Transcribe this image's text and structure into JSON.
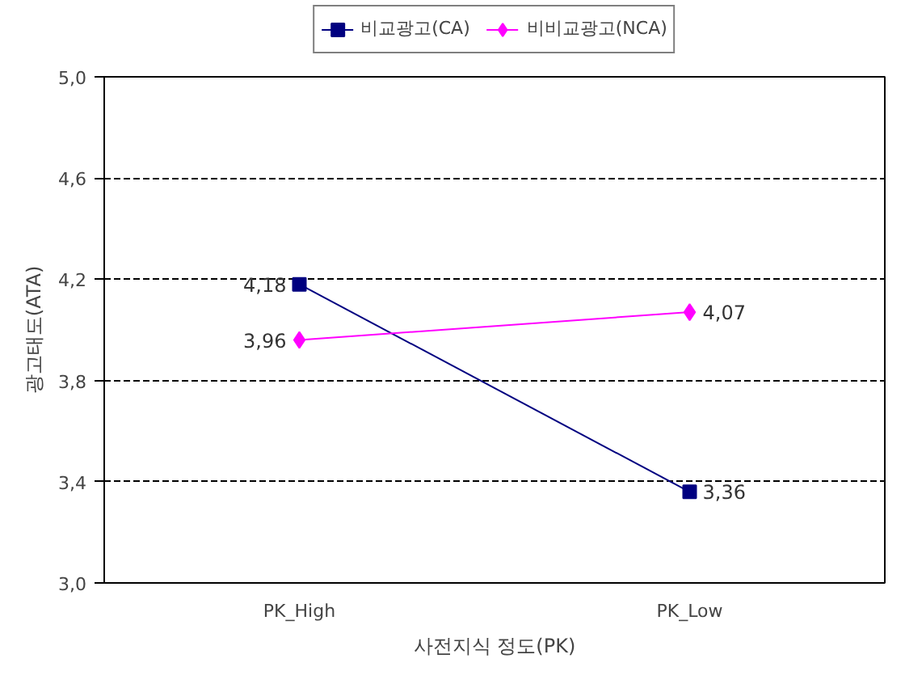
{
  "chart_data": {
    "type": "line",
    "xlabel": "사전지식 정도(PK)",
    "ylabel": "광고태도(ATA)",
    "categories": [
      "PK_High",
      "PK_Low"
    ],
    "series": [
      {
        "name": "비교광고(CA)",
        "color": "#000080",
        "marker": "square",
        "values": [
          4.18,
          3.36
        ],
        "value_labels": [
          "4,18",
          "3,36"
        ]
      },
      {
        "name": "비비교광고(NCA)",
        "color": "#ff00ff",
        "marker": "diamond",
        "values": [
          3.96,
          4.07
        ],
        "value_labels": [
          "3,96",
          "4,07"
        ]
      }
    ],
    "ylim": [
      3.0,
      5.0
    ],
    "yticks": [
      {
        "value": 3.0,
        "label": "3,0"
      },
      {
        "value": 3.4,
        "label": "3,4"
      },
      {
        "value": 3.8,
        "label": "3,8"
      },
      {
        "value": 4.2,
        "label": "4,2"
      },
      {
        "value": 4.6,
        "label": "4,6"
      },
      {
        "value": 5.0,
        "label": "5,0"
      }
    ],
    "grid": "y",
    "legend": "top"
  }
}
